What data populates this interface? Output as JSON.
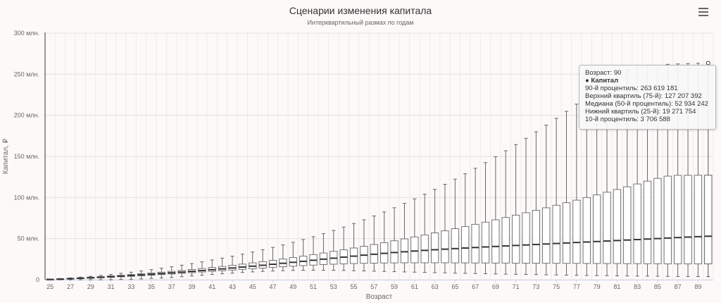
{
  "header": {
    "menu_icon": "hamburger-menu-icon"
  },
  "tooltip": {
    "header": "Возраст: 90",
    "series": "● Капитал",
    "lines": [
      "90-й процентиль: 263 619 181",
      "Верхний квартиль (75-й): 127 207 392",
      "Медиана (50-й процентиль): 52 934 242",
      "Нижний квартиль (25-й): 19 271 754",
      "10-й процентиль: 3 706 588"
    ]
  },
  "chart_data": {
    "type": "boxplot",
    "title": "Сценарии изменения капитала",
    "subtitle": "Интерквартильный размах по годам",
    "xlabel": "Возраст",
    "ylabel": "Капитал, ₽",
    "ylim": [
      0,
      300000000
    ],
    "yticks": [
      0,
      50000000,
      100000000,
      150000000,
      200000000,
      250000000,
      300000000
    ],
    "ytick_labels": [
      "0",
      "50 млн.",
      "100 млн.",
      "150 млн.",
      "200 млн.",
      "250 млн.",
      "300 млн."
    ],
    "xticks": [
      25,
      27,
      29,
      31,
      33,
      35,
      37,
      39,
      41,
      43,
      45,
      47,
      49,
      51,
      53,
      55,
      57,
      59,
      61,
      63,
      65,
      67,
      69,
      71,
      73,
      75,
      77,
      79,
      81,
      83,
      85,
      87,
      89
    ],
    "grid": true,
    "legend": "none",
    "highlighted_age": 90,
    "series": [
      {
        "name": "Капитал",
        "x": [
          25,
          26,
          27,
          28,
          29,
          30,
          31,
          32,
          33,
          34,
          35,
          36,
          37,
          38,
          39,
          40,
          41,
          42,
          43,
          44,
          45,
          46,
          47,
          48,
          49,
          50,
          51,
          52,
          53,
          54,
          55,
          56,
          57,
          58,
          59,
          60,
          61,
          62,
          63,
          64,
          65,
          66,
          67,
          68,
          69,
          70,
          71,
          72,
          73,
          74,
          75,
          76,
          77,
          78,
          79,
          80,
          81,
          82,
          83,
          84,
          85,
          86,
          87,
          88,
          89,
          90
        ],
        "p10": [
          0,
          0,
          0,
          0,
          0,
          0,
          0.1,
          0.3,
          0.6,
          1.0,
          1.5,
          2.1,
          2.8,
          3.6,
          4.5,
          5.4,
          6.3,
          7.2,
          8.0,
          8.8,
          9.5,
          10.1,
          10.6,
          11.0,
          11.3,
          11.5,
          11.6,
          11.6,
          11.5,
          11.3,
          11.0,
          10.7,
          10.4,
          10.1,
          9.8,
          9.5,
          9.2,
          8.9,
          8.6,
          8.3,
          8.0,
          7.8,
          7.5,
          7.3,
          7.0,
          6.8,
          6.6,
          6.4,
          6.2,
          6.0,
          5.8,
          5.6,
          5.4,
          5.2,
          5.0,
          4.9,
          4.7,
          4.6,
          4.4,
          4.3,
          4.2,
          4.1,
          3.9,
          3.8,
          3.8,
          3.7
        ],
        "q1": [
          0.3,
          0.6,
          1.0,
          1.4,
          1.9,
          2.4,
          3.0,
          3.6,
          4.2,
          4.9,
          5.6,
          6.3,
          7.0,
          7.8,
          8.6,
          9.4,
          10.2,
          11.0,
          11.8,
          12.6,
          13.4,
          14.2,
          15.0,
          15.8,
          16.5,
          17.2,
          17.8,
          18.4,
          18.9,
          19.3,
          19.7,
          20.0,
          20.2,
          20.4,
          20.5,
          20.6,
          20.6,
          20.6,
          20.6,
          20.6,
          20.5,
          20.5,
          20.4,
          20.4,
          20.3,
          20.3,
          20.2,
          20.2,
          20.1,
          20.0,
          20.0,
          19.9,
          19.9,
          19.8,
          19.8,
          19.7,
          19.7,
          19.6,
          19.6,
          19.5,
          19.5,
          19.4,
          19.4,
          19.3,
          19.3,
          19.27
        ],
        "median": [
          0.4,
          0.8,
          1.3,
          1.8,
          2.4,
          3.0,
          3.7,
          4.4,
          5.1,
          5.9,
          6.7,
          7.5,
          8.4,
          9.3,
          10.2,
          11.2,
          12.2,
          13.2,
          14.3,
          15.4,
          16.5,
          17.6,
          18.8,
          20.0,
          21.2,
          22.4,
          23.7,
          25.0,
          26.2,
          27.5,
          28.7,
          29.9,
          31.0,
          32.1,
          33.1,
          34.0,
          34.9,
          35.7,
          36.5,
          37.2,
          37.9,
          38.6,
          39.2,
          39.9,
          40.5,
          41.1,
          41.7,
          42.3,
          42.9,
          43.5,
          44.1,
          44.7,
          45.3,
          45.9,
          46.5,
          47.1,
          47.7,
          48.3,
          48.9,
          49.5,
          50.1,
          50.7,
          51.3,
          51.9,
          52.4,
          52.93
        ],
        "q3": [
          0.6,
          1.1,
          1.7,
          2.4,
          3.1,
          3.8,
          4.6,
          5.4,
          6.3,
          7.2,
          8.2,
          9.2,
          10.2,
          11.3,
          12.5,
          13.7,
          14.9,
          16.2,
          17.6,
          19.0,
          20.5,
          22.0,
          23.6,
          25.3,
          27.0,
          28.8,
          30.6,
          32.5,
          34.5,
          36.5,
          38.6,
          40.7,
          42.9,
          45.1,
          47.4,
          49.7,
          52.1,
          54.5,
          57.0,
          59.5,
          62.1,
          64.7,
          67.4,
          70.1,
          72.9,
          75.7,
          78.6,
          81.5,
          84.5,
          87.5,
          90.6,
          93.7,
          96.8,
          100.0,
          103.2,
          106.5,
          109.8,
          113.1,
          116.5,
          119.9,
          123.3,
          126.0,
          127.0,
          127.1,
          127.2,
          127.21
        ],
        "p90": [
          0.8,
          1.5,
          2.3,
          3.2,
          4.2,
          5.3,
          6.5,
          7.8,
          9.2,
          10.7,
          12.3,
          14.0,
          15.8,
          17.7,
          19.7,
          21.8,
          24.0,
          26.3,
          28.7,
          31.2,
          33.8,
          36.5,
          39.4,
          42.4,
          45.6,
          48.9,
          52.4,
          56.1,
          60.0,
          64.1,
          68.4,
          72.9,
          77.6,
          82.5,
          87.6,
          92.9,
          98.4,
          104.1,
          110.0,
          116.1,
          122.4,
          128.9,
          135.6,
          142.5,
          149.6,
          156.9,
          164.4,
          172.1,
          180.0,
          188.1,
          196.4,
          204.9,
          213.6,
          222.5,
          231.6,
          240.9,
          250.4,
          255.0,
          258.0,
          260.0,
          261.0,
          262.0,
          262.5,
          263.0,
          263.3,
          263.62
        ],
        "unit": "млн. ₽"
      }
    ]
  }
}
